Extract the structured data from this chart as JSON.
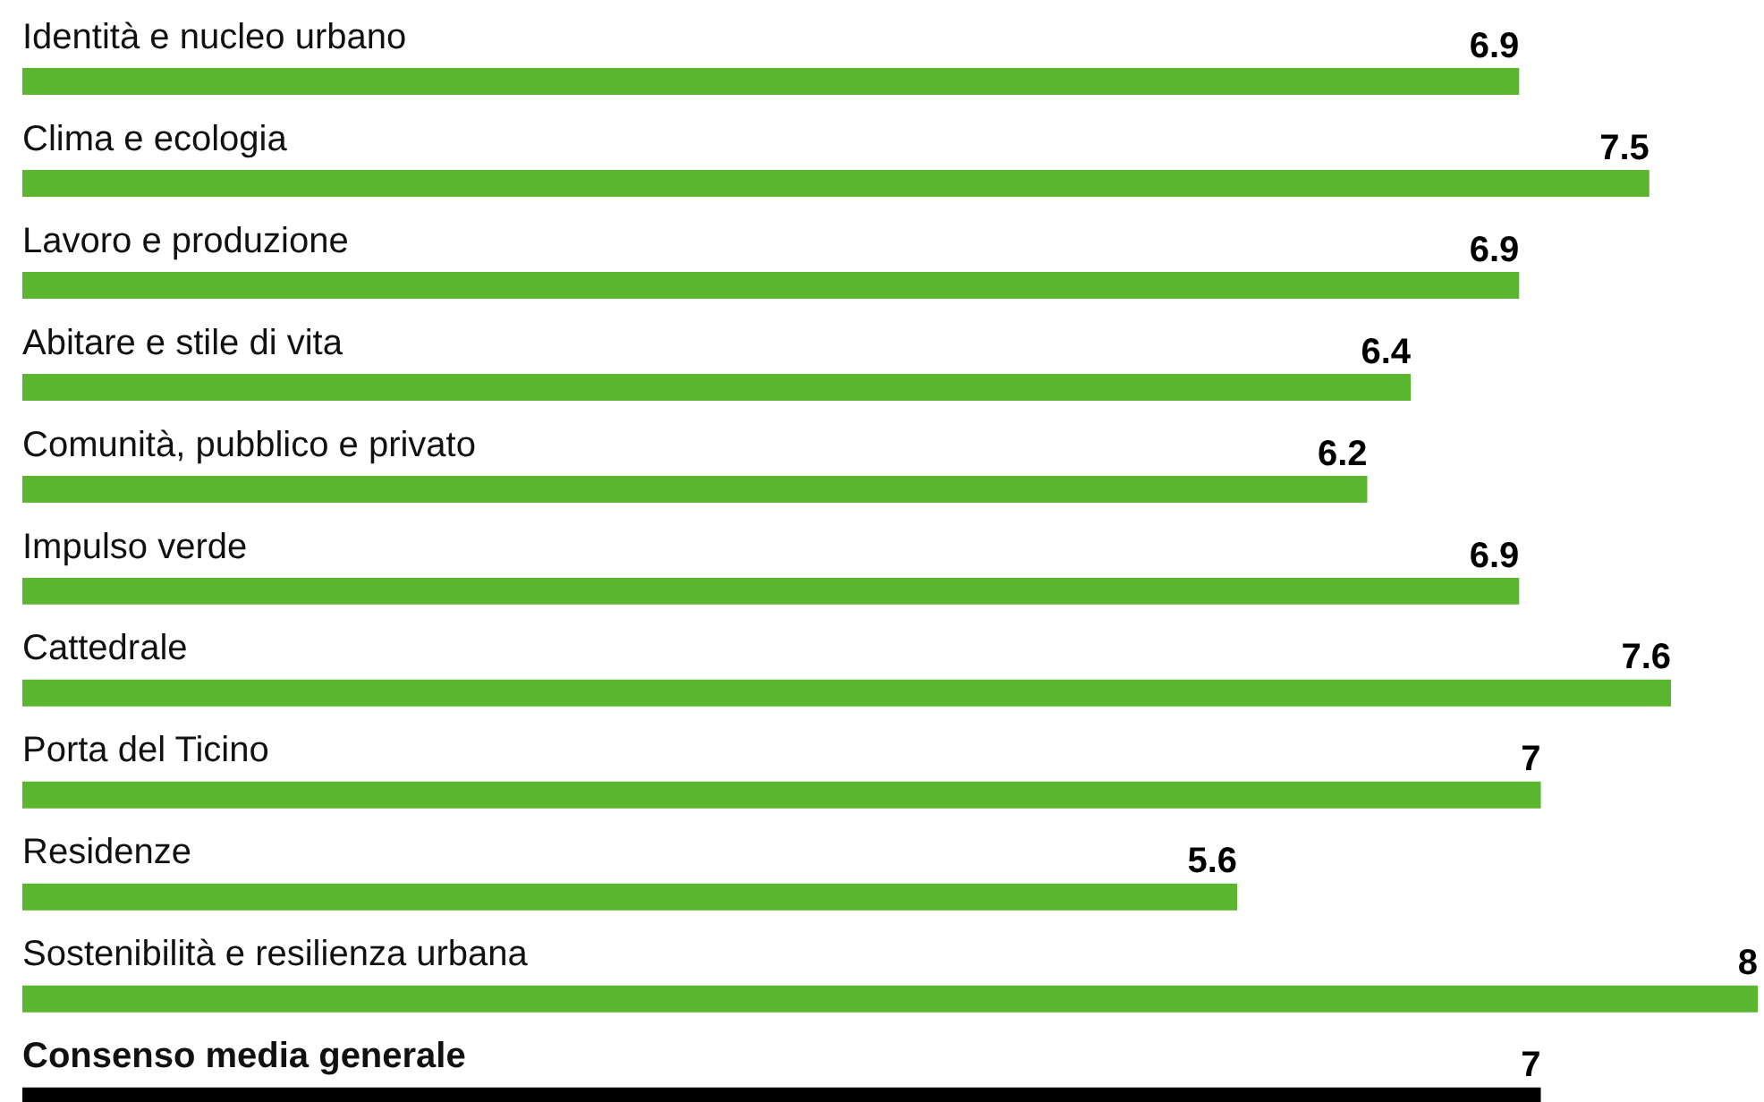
{
  "chart_data": {
    "type": "bar",
    "orientation": "horizontal",
    "categories": [
      "Identità e nucleo urbano",
      "Clima e ecologia",
      "Lavoro e produzione",
      "Abitare e stile di vita",
      "Comunità, pubblico e privato",
      "Impulso verde",
      "Cattedrale",
      "Porta del Ticino",
      "Residenze",
      "Sostenibilità e resilienza urbana",
      "Consenso media generale"
    ],
    "values": [
      6.9,
      7.5,
      6.9,
      6.4,
      6.2,
      6.9,
      7.6,
      7,
      5.6,
      8,
      7
    ],
    "colors": [
      "#5ab52f",
      "#5ab52f",
      "#5ab52f",
      "#5ab52f",
      "#5ab52f",
      "#5ab52f",
      "#5ab52f",
      "#5ab52f",
      "#5ab52f",
      "#5ab52f",
      "#000000"
    ],
    "xlim": [
      0,
      8
    ],
    "data_labels": true,
    "tick_labels": false,
    "grid": false
  }
}
